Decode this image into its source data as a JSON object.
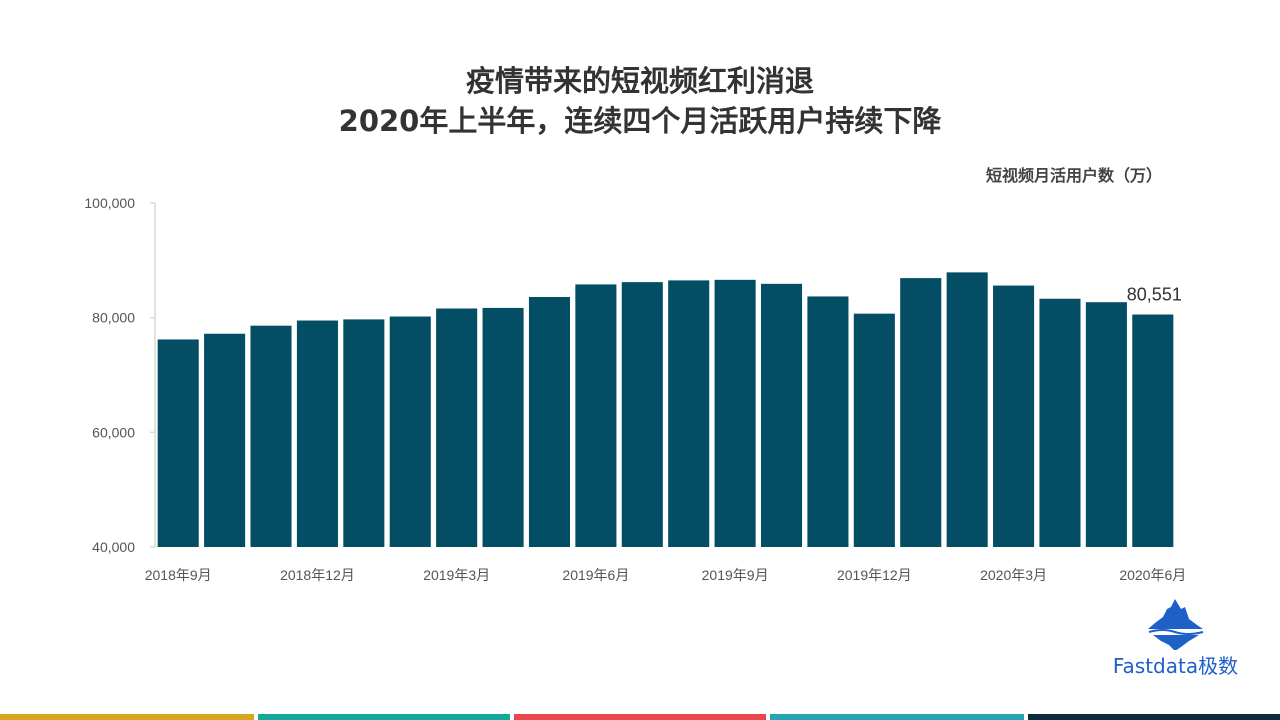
{
  "title_line1": "疫情带来的短视频红利消退",
  "title_line2": "2020年上半年，连续四个月活跃用户持续下降",
  "brand": "Fastdata极数",
  "colors": {
    "bar": "#034e64",
    "strips": [
      "#d9a521",
      "#13a89a",
      "#e8474f",
      "#27a3b3",
      "#0d2b3b"
    ],
    "logo": "#1f5fc8"
  },
  "chart_data": {
    "type": "bar",
    "title": "",
    "unit_label": "短视频月活用户数（万）",
    "categories": [
      "2018年9月",
      "2018年10月",
      "2018年11月",
      "2018年12月",
      "2019年1月",
      "2019年2月",
      "2019年3月",
      "2019年4月",
      "2019年5月",
      "2019年6月",
      "2019年7月",
      "2019年8月",
      "2019年9月",
      "2019年10月",
      "2019年11月",
      "2019年12月",
      "2020年1月",
      "2020年2月",
      "2020年3月",
      "2020年4月",
      "2020年5月",
      "2020年6月"
    ],
    "x_tick_labels": [
      "2018年9月",
      "2018年12月",
      "2019年3月",
      "2019年6月",
      "2019年9月",
      "2019年12月",
      "2020年3月",
      "2020年6月"
    ],
    "values": [
      76200,
      77200,
      78600,
      79500,
      79700,
      80200,
      81600,
      81700,
      83600,
      85800,
      86200,
      86500,
      86600,
      85900,
      83700,
      80700,
      86900,
      87900,
      85600,
      83300,
      82700,
      80551
    ],
    "data_labels": [
      {
        "category": "2020年6月",
        "text": "80,551"
      }
    ],
    "ylim": [
      40000,
      100000
    ],
    "y_ticks": [
      "40,000",
      "60,000",
      "80,000",
      "100,000"
    ],
    "y_tick_values": [
      40000,
      60000,
      80000,
      100000
    ],
    "grid": false,
    "legend": "none"
  }
}
